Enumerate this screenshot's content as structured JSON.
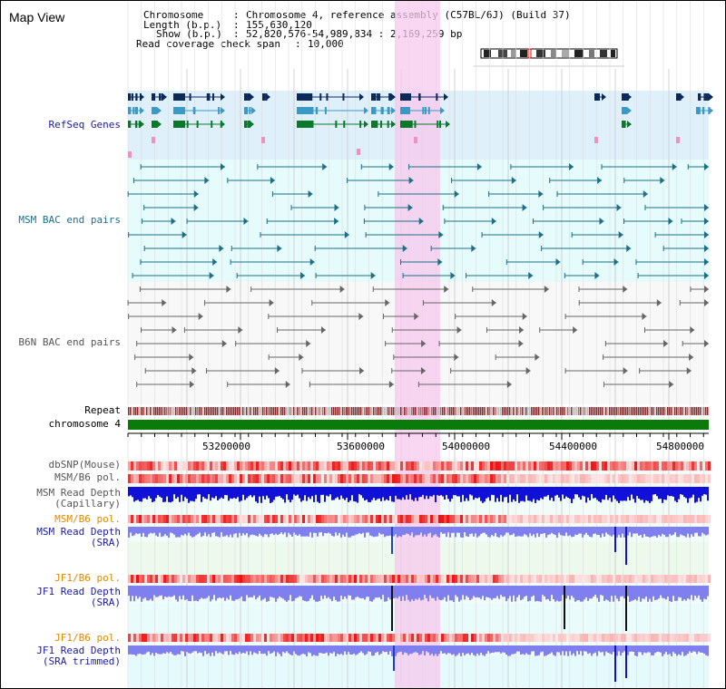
{
  "header": {
    "title": "Map View",
    "info": {
      "chromosome_label": "Chromosome",
      "chromosome_value": "Chromosome 4, reference assembly (C57BL/6J) (Build 37)",
      "length_label": "Length (b.p.)",
      "length_value": "155,630,120",
      "show_label": "Show (b.p.)",
      "show_value": "52,820,576-54,989,834 : 2,169,259 bp",
      "coverage_label": "Read coverage check span",
      "coverage_value": "10,000"
    }
  },
  "tracks": {
    "refseq": "RefSeq Genes",
    "msm_bac": "MSM BAC end pairs",
    "b6n_bac": "B6N BAC end pairs",
    "repeat": "Repeat",
    "chromosome": "chromosome 4",
    "dbsnp": "dbSNP(Mouse)",
    "msm_b6_pol": "MSM/B6 pol.",
    "msm_depth_cap_1": "MSM Read Depth",
    "msm_depth_cap_2": "(Capillary)",
    "msm_b6_pol_2": "MSM/B6 pol.",
    "msm_depth_sra_1": "MSM Read Depth",
    "msm_depth_sra_2": "(SRA)",
    "jf1_b6_pol": "JF1/B6 pol.",
    "jf1_depth_sra_1": "JF1 Read Depth",
    "jf1_depth_sra_2": "(SRA)",
    "jf1_b6_pol_2": "JF1/B6 pol.",
    "jf1_depth_trim_1": "JF1 Read Depth",
    "jf1_depth_trim_2": "(SRA trimmed)"
  },
  "axis": {
    "ticks": [
      "53200000",
      "53600000",
      "54000000",
      "54400000",
      "54800000"
    ]
  },
  "colors": {
    "navy_label": "#1a1aa8",
    "teal_label": "#1f6f8a",
    "orange_label": "#e08a00",
    "highlight": "#f7c8ee",
    "chromosome_bar": "#0a7a0a",
    "depth_blue": "#1010d8",
    "depth_light": "#7f7ff0"
  }
}
